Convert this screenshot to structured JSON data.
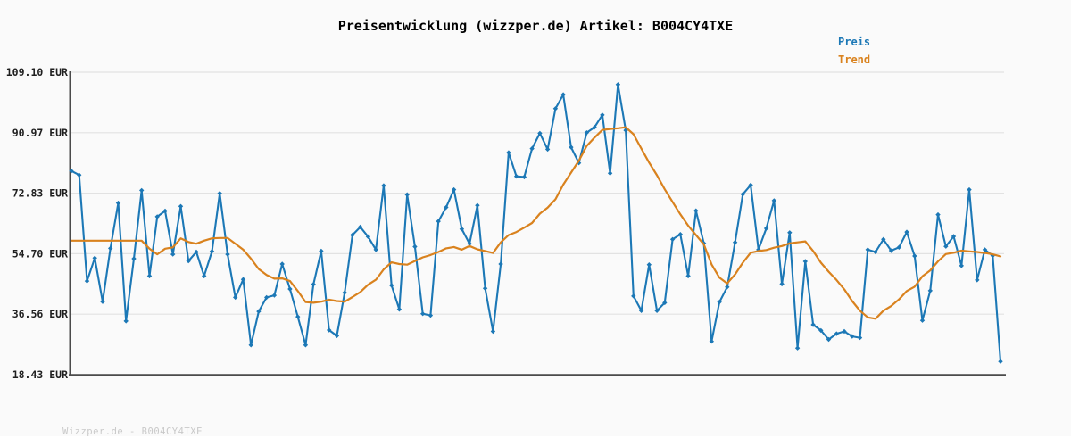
{
  "title": "Preisentwicklung (wizzper.de) Artikel: B004CY4TXE",
  "footer": "Wizzper.de - B004CY4TXE",
  "legend": [
    {
      "label": "Preis",
      "color": "#1c78b6"
    },
    {
      "label": "Trend",
      "color": "#d9821e"
    }
  ],
  "colors": {
    "background": "#fafafa",
    "grid": "#e2e2e2",
    "axis": "#4b4b4b",
    "tick_label": "#1f1f1f",
    "price": "#1c78b6",
    "trend": "#d9821e",
    "footer_text": "#c9c9c9"
  },
  "y_axis": {
    "tick_labels": [
      "109.10 EUR",
      "90.97 EUR",
      "72.83 EUR",
      "54.70 EUR",
      "36.56 EUR",
      "18.43 EUR"
    ],
    "tick_values": [
      109.1,
      90.97,
      72.83,
      54.7,
      36.56,
      18.43
    ]
  },
  "chart_data": {
    "type": "line",
    "title": "Preisentwicklung (wizzper.de) Artikel: B004CY4TXE",
    "xlabel": "",
    "ylabel": "",
    "ylim": [
      18.43,
      109.1
    ],
    "y_ticks": [
      109.1,
      90.97,
      72.83,
      54.7,
      36.56,
      18.43
    ],
    "grid": true,
    "x_tick_labels": [],
    "legend_position": "top-right",
    "series": [
      {
        "name": "Preis",
        "color": "#1c78b6",
        "marker": "diamond",
        "values": [
          79.5,
          78.3,
          46.5,
          53.4,
          40.3,
          56.3,
          69.9,
          34.5,
          53.2,
          73.7,
          48.0,
          65.8,
          67.5,
          54.5,
          68.9,
          52.5,
          55.2,
          48.0,
          55.4,
          72.8,
          54.5,
          41.6,
          47.0,
          27.3,
          37.4,
          41.6,
          42.2,
          51.6,
          44.1,
          35.8,
          27.3,
          45.5,
          55.5,
          31.8,
          30.1,
          43.0,
          60.3,
          62.7,
          59.8,
          55.9,
          75.1,
          45.2,
          38.0,
          72.4,
          56.8,
          36.7,
          36.2,
          64.4,
          68.6,
          73.9,
          62.1,
          57.7,
          69.2,
          44.3,
          31.4,
          51.6,
          85.0,
          77.9,
          77.7,
          86.2,
          90.8,
          86.0,
          98.2,
          102.4,
          86.6,
          81.9,
          91.0,
          92.6,
          96.3,
          78.8,
          105.4,
          91.7,
          42.0,
          37.6,
          51.4,
          37.6,
          40.0,
          59.0,
          60.5,
          48.0,
          67.6,
          57.8,
          28.4,
          40.2,
          44.7,
          58.1,
          72.5,
          75.3,
          55.9,
          62.3,
          70.6,
          45.6,
          61.0,
          26.4,
          52.4,
          33.4,
          31.7,
          29.0,
          30.7,
          31.4,
          29.9,
          29.5,
          55.9,
          55.2,
          59.0,
          55.6,
          56.6,
          61.2,
          54.0,
          34.7,
          43.6,
          66.4,
          56.9,
          59.9,
          51.1,
          73.9,
          46.8,
          55.9,
          54.1,
          22.4
        ]
      },
      {
        "name": "Trend",
        "color": "#d9821e",
        "marker": "none",
        "values": [
          58.6,
          58.6,
          58.6,
          58.6,
          58.6,
          58.6,
          58.6,
          58.6,
          58.6,
          58.6,
          56.2,
          54.5,
          56.2,
          56.6,
          59.3,
          58.2,
          57.7,
          58.6,
          59.3,
          59.4,
          59.4,
          57.7,
          55.9,
          53.2,
          50.1,
          48.3,
          47.2,
          47.3,
          46.5,
          43.5,
          40.2,
          40.0,
          40.3,
          40.9,
          40.5,
          40.3,
          41.7,
          43.2,
          45.4,
          46.9,
          50.0,
          52.1,
          51.6,
          51.4,
          52.5,
          53.6,
          54.3,
          55.2,
          56.3,
          56.7,
          55.9,
          57.0,
          56.0,
          55.5,
          54.9,
          58.1,
          60.3,
          61.2,
          62.5,
          63.9,
          66.7,
          68.5,
          71.0,
          75.4,
          79.0,
          82.6,
          87.0,
          89.5,
          91.8,
          92.1,
          92.3,
          92.6,
          90.5,
          86.2,
          82.0,
          78.2,
          74.0,
          70.2,
          66.5,
          63.1,
          60.3,
          57.5,
          51.5,
          47.5,
          45.8,
          48.5,
          52.0,
          55.0,
          55.5,
          55.8,
          56.5,
          57.0,
          57.8,
          58.1,
          58.4,
          55.5,
          52.0,
          49.3,
          46.8,
          44.0,
          40.5,
          37.6,
          35.6,
          35.2,
          37.6,
          39.0,
          41.0,
          43.5,
          44.8,
          47.9,
          49.7,
          52.4,
          54.6,
          55.0,
          55.6,
          55.4,
          55.2,
          54.9,
          54.5,
          53.9
        ]
      }
    ]
  }
}
